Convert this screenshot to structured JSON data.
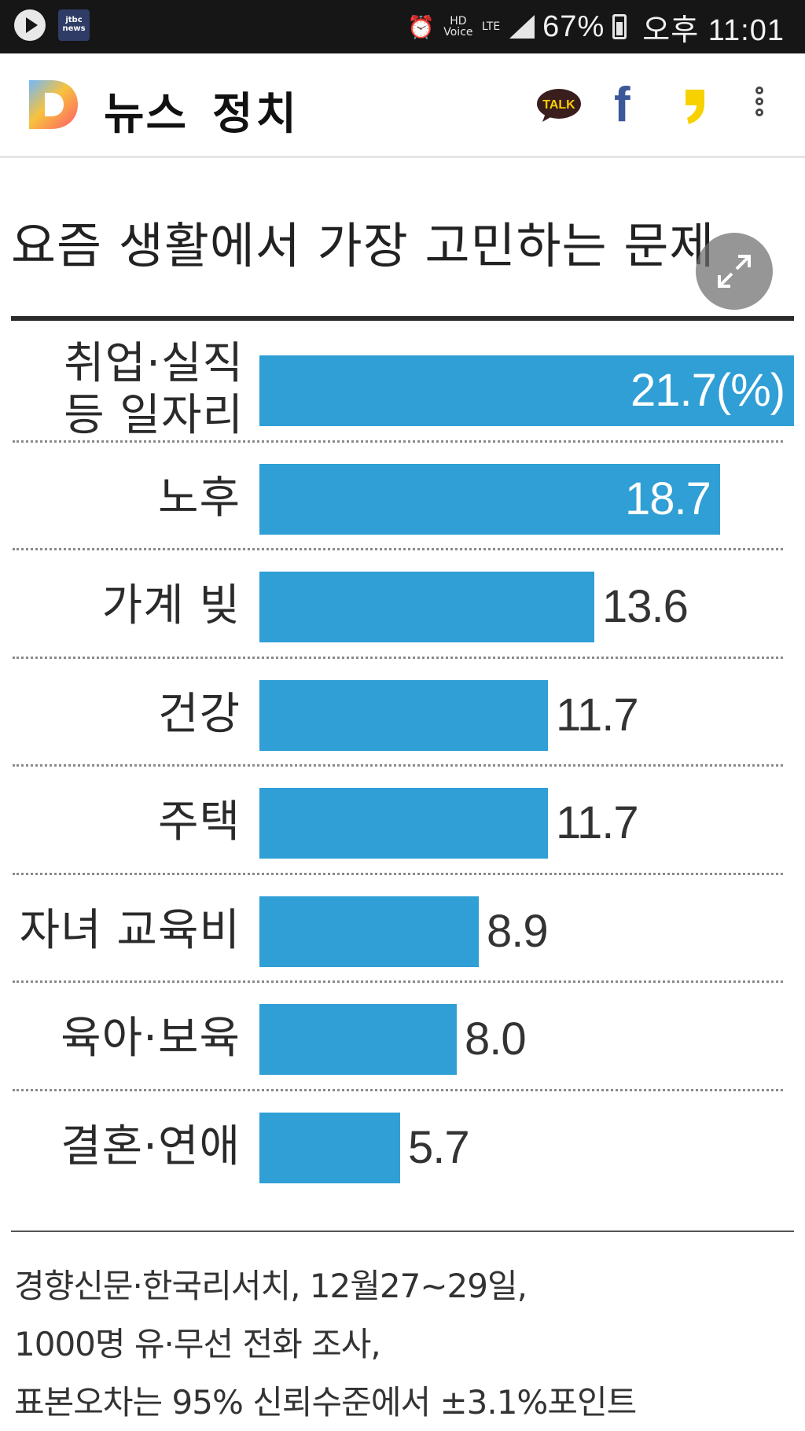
{
  "status_bar": {
    "jtbc_label": "jtbc news",
    "hd_voice": "HD Voice",
    "network": "LTE",
    "battery": "67%",
    "time": "오후 11:01"
  },
  "app_bar": {
    "title": "뉴스",
    "section": "정치",
    "talk_label": "TALK",
    "facebook_label": "f"
  },
  "colors": {
    "bar": "#2f9fd5",
    "accent_text_in_bar": "#ffffff"
  },
  "chart_data": {
    "type": "bar",
    "orientation": "horizontal",
    "title": "요즘 생활에서 가장 고민하는 문제",
    "unit_label": "(%)",
    "categories": [
      "취업·실직 등 일자리",
      "노후",
      "가계 빚",
      "건강",
      "주택",
      "자녀 교육비",
      "육아·보육",
      "결혼·연애"
    ],
    "value_labels": [
      "21.7(%)",
      "18.7",
      "13.6",
      "11.7",
      "11.7",
      "8.9",
      "8.0",
      "5.7"
    ],
    "values": [
      21.7,
      18.7,
      13.6,
      11.7,
      11.7,
      8.9,
      8.0,
      5.7
    ],
    "xlim": [
      0,
      21.7
    ],
    "grid": false,
    "legend": "none"
  },
  "notes": [
    "경향신문·한국리서치, 12월27~29일,",
    "1000명 유·무선 전화 조사,",
    "표본오차는 95% 신뢰수준에서 ±3.1%포인트"
  ]
}
